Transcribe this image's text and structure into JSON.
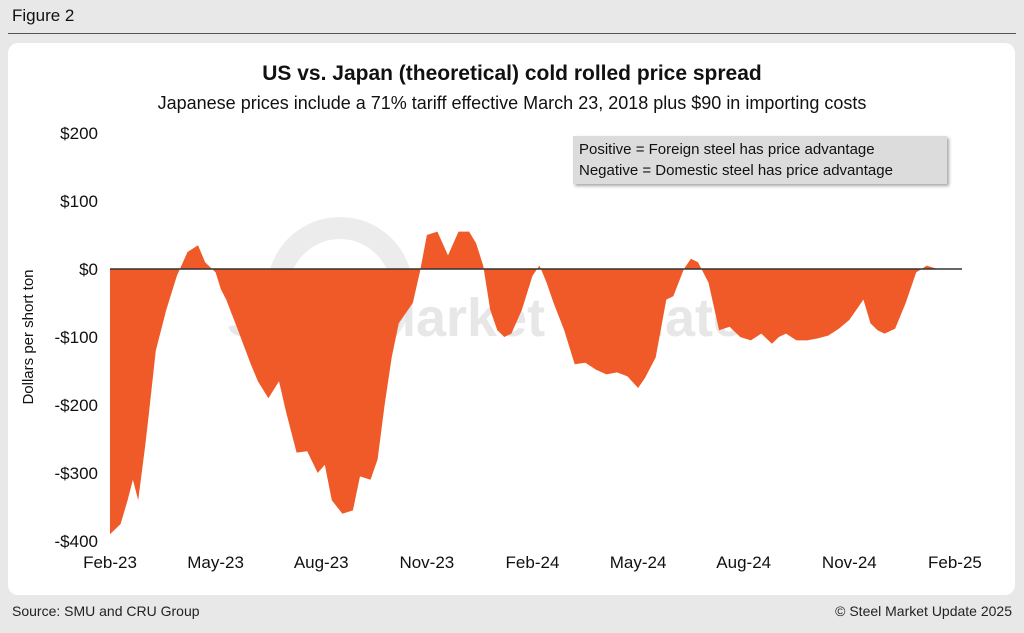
{
  "figure_label": "Figure 2",
  "footer": {
    "source": "Source: SMU and CRU Group",
    "copyright": "© Steel Market Update 2025"
  },
  "watermark": "Steel Market Update",
  "colors": {
    "fill": "#f05a28",
    "zero_line": "#333333",
    "text": "#111111"
  },
  "chart_data": {
    "type": "area",
    "title": "US vs. Japan (theoretical) cold rolled price spread",
    "subtitle": "Japanese prices include a 71% tariff effective March 23, 2018 plus $90 in importing costs",
    "xlabel": "",
    "ylabel": "Dollars per short ton",
    "ylim": [
      -400,
      200
    ],
    "y_ticks": [
      200,
      100,
      0,
      -100,
      -200,
      -300,
      -400
    ],
    "y_tick_labels": [
      "$200",
      "$100",
      "$0",
      "-$100",
      "-$200",
      "-$300",
      "-$400"
    ],
    "x_range_months": [
      0,
      24.2
    ],
    "x_ticks": [
      0,
      3,
      6,
      9,
      12,
      15,
      18,
      21,
      24
    ],
    "x_tick_labels": [
      "Feb-23",
      "May-23",
      "Aug-23",
      "Nov-23",
      "Feb-24",
      "May-24",
      "Aug-24",
      "Nov-24",
      "Feb-25"
    ],
    "legend": [
      "Positive = Foreign steel has price advantage",
      "Negative = Domestic steel has price advantage"
    ],
    "legend_position": "top-right",
    "series": [
      {
        "name": "US vs. Japan cold rolled spread",
        "x_months": [
          0,
          0.3,
          0.5,
          0.65,
          0.8,
          1.0,
          1.1,
          1.3,
          1.6,
          1.9,
          2.2,
          2.5,
          2.7,
          2.9,
          3.0,
          3.15,
          3.3,
          3.6,
          4.0,
          4.2,
          4.5,
          4.8,
          5.0,
          5.3,
          5.6,
          5.9,
          6.1,
          6.3,
          6.6,
          6.9,
          7.1,
          7.4,
          7.6,
          7.8,
          8.0,
          8.2,
          8.4,
          8.6,
          8.8,
          9.0,
          9.3,
          9.6,
          9.9,
          10.2,
          10.4,
          10.6,
          10.8,
          11.0,
          11.2,
          11.4,
          11.7,
          12.0,
          12.2,
          12.4,
          12.6,
          12.9,
          13.2,
          13.5,
          13.8,
          14.1,
          14.4,
          14.7,
          15.0,
          15.2,
          15.5,
          15.8,
          16.0,
          16.3,
          16.5,
          16.7,
          17.0,
          17.3,
          17.6,
          17.9,
          18.2,
          18.5,
          18.8,
          19.0,
          19.2,
          19.5,
          19.8,
          20.1,
          20.4,
          20.7,
          21.0,
          21.2,
          21.4,
          21.6,
          21.8,
          22.0,
          22.3,
          22.6,
          22.9,
          23.2,
          23.5,
          23.8,
          24.0,
          24.2
        ],
        "values": [
          -390,
          -375,
          -340,
          -310,
          -340,
          -260,
          -215,
          -120,
          -60,
          -10,
          25,
          35,
          10,
          0,
          -5,
          -30,
          -45,
          -85,
          -140,
          -165,
          -190,
          -165,
          -210,
          -270,
          -268,
          -300,
          -288,
          -340,
          -360,
          -355,
          -305,
          -310,
          -280,
          -200,
          -130,
          -80,
          -65,
          -50,
          -5,
          50,
          55,
          20,
          55,
          55,
          38,
          5,
          -60,
          -90,
          -100,
          -95,
          -60,
          -10,
          5,
          -20,
          -50,
          -90,
          -140,
          -138,
          -148,
          -155,
          -152,
          -158,
          -175,
          -160,
          -130,
          -45,
          -40,
          0,
          15,
          10,
          -20,
          -90,
          -85,
          -100,
          -105,
          -95,
          -110,
          -100,
          -95,
          -105,
          -105,
          -102,
          -98,
          -88,
          -75,
          -60,
          -45,
          -80,
          -90,
          -95,
          -88,
          -50,
          -5,
          5,
          0,
          0,
          0,
          0
        ]
      }
    ]
  }
}
